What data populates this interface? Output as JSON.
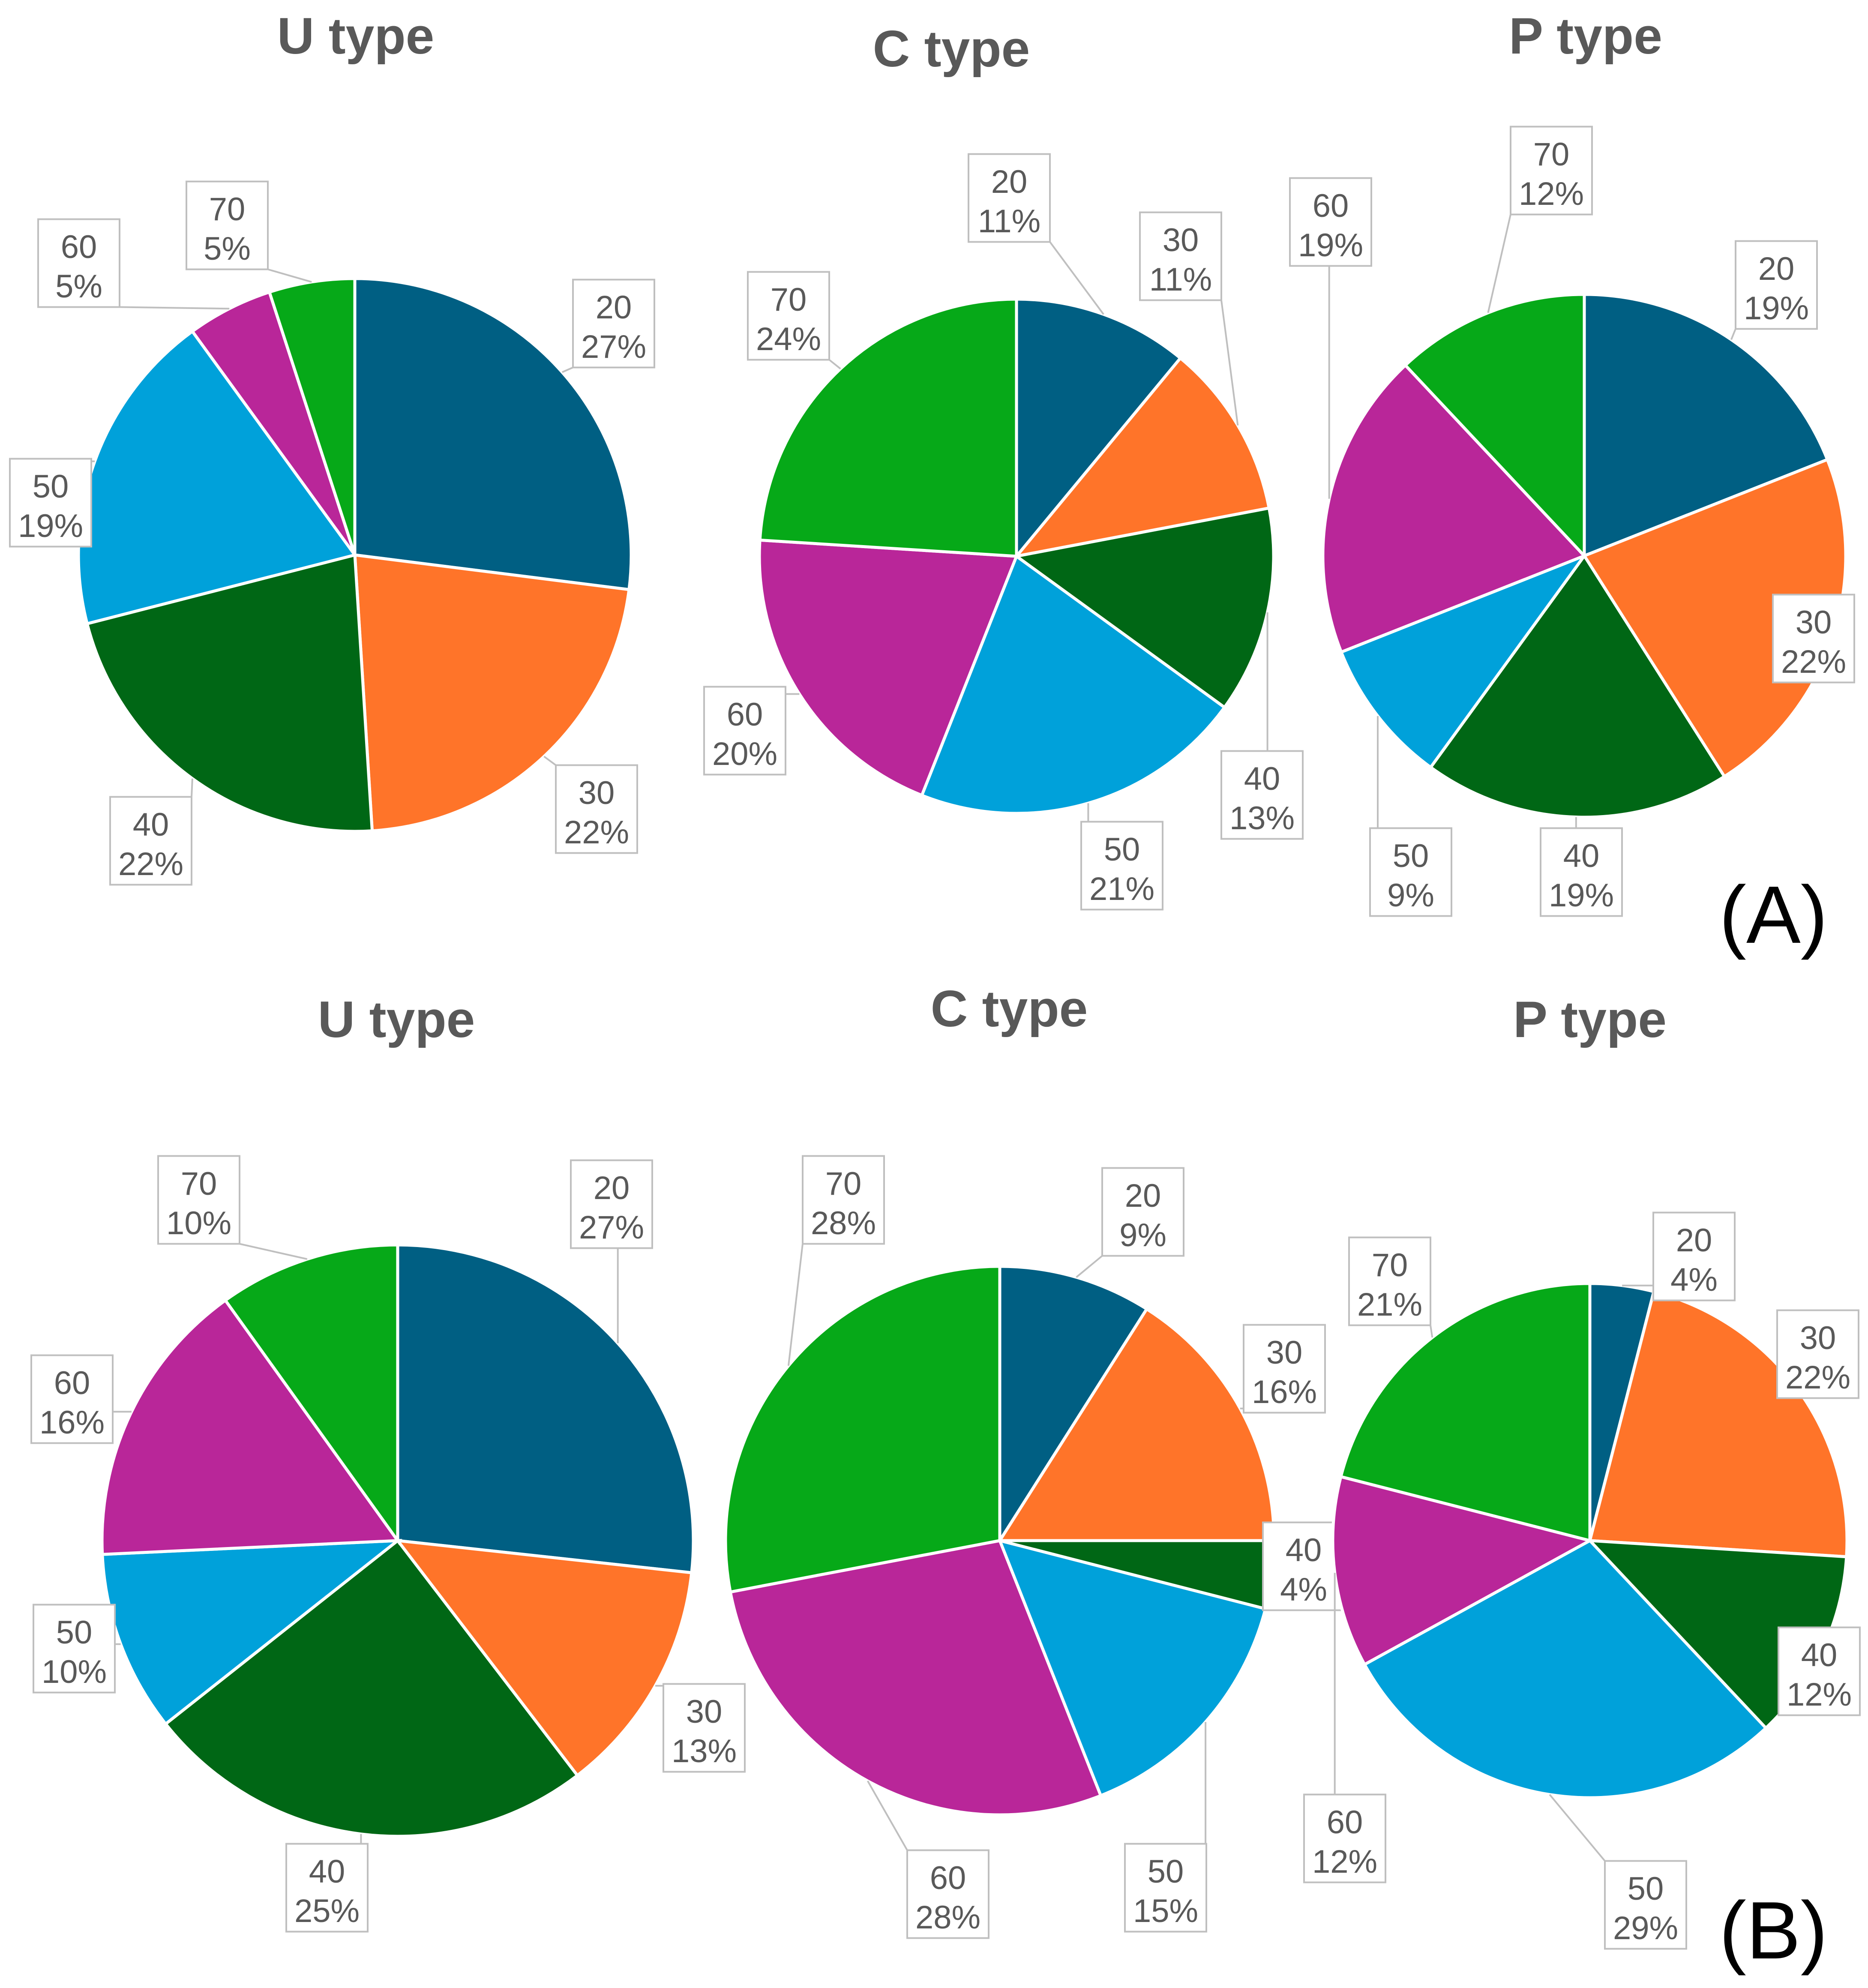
{
  "colors": {
    "20": "#005f83",
    "30": "#ff7429",
    "40": "#006715",
    "50": "#00a1da",
    "60": "#b92699",
    "70": "#06a918"
  },
  "panels": [
    {
      "tag": "(A)"
    },
    {
      "tag": "(B)"
    }
  ],
  "chart_data": [
    {
      "type": "pie",
      "panel": "(A)",
      "title": "U type",
      "categories": [
        "20",
        "30",
        "40",
        "50",
        "60",
        "70"
      ],
      "values": [
        27,
        22,
        22,
        19,
        5,
        5
      ],
      "data_labels": [
        "27%",
        "22%",
        "22%",
        "19%",
        "5%",
        "5%"
      ]
    },
    {
      "type": "pie",
      "panel": "(A)",
      "title": "C type",
      "categories": [
        "20",
        "30",
        "40",
        "50",
        "60",
        "70"
      ],
      "values": [
        11,
        11,
        13,
        21,
        20,
        24
      ],
      "data_labels": [
        "11%",
        "11%",
        "13%",
        "21%",
        "20%",
        "24%"
      ]
    },
    {
      "type": "pie",
      "panel": "(A)",
      "title": "P type",
      "categories": [
        "20",
        "30",
        "40",
        "50",
        "60",
        "70"
      ],
      "values": [
        19,
        22,
        19,
        9,
        19,
        12
      ],
      "data_labels": [
        "19%",
        "22%",
        "19%",
        "9%",
        "19%",
        "12%"
      ]
    },
    {
      "type": "pie",
      "panel": "(B)",
      "title": "U type",
      "categories": [
        "20",
        "30",
        "40",
        "50",
        "60",
        "70"
      ],
      "values": [
        27,
        13,
        25,
        10,
        16,
        10
      ],
      "data_labels": [
        "27%",
        "13%",
        "25%",
        "10%",
        "16%",
        "10%"
      ]
    },
    {
      "type": "pie",
      "panel": "(B)",
      "title": "C type",
      "categories": [
        "20",
        "30",
        "40",
        "50",
        "60",
        "70"
      ],
      "values": [
        9,
        16,
        4,
        15,
        28,
        28
      ],
      "data_labels": [
        "9%",
        "16%",
        "4%",
        "15%",
        "28%",
        "28%"
      ]
    },
    {
      "type": "pie",
      "panel": "(B)",
      "title": "P type",
      "categories": [
        "20",
        "30",
        "40",
        "50",
        "60",
        "70"
      ],
      "values": [
        4,
        22,
        12,
        29,
        12,
        21
      ],
      "data_labels": [
        "4%",
        "22%",
        "12%",
        "29%",
        "12%",
        "21%"
      ]
    }
  ]
}
